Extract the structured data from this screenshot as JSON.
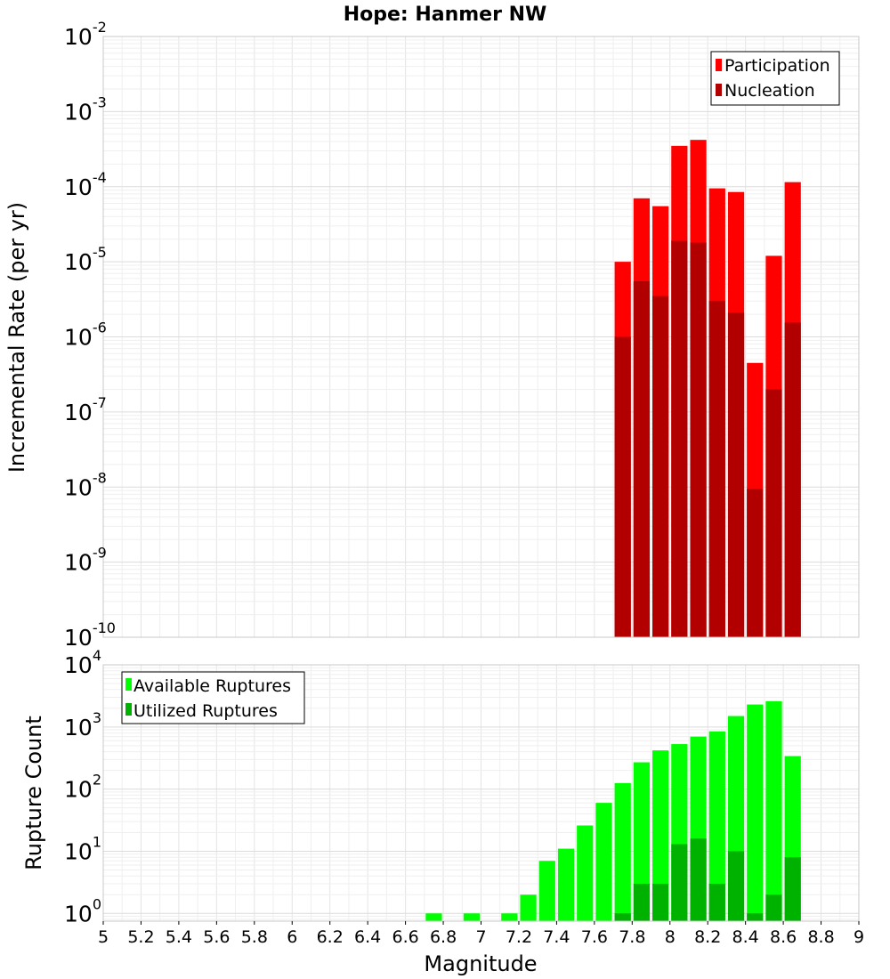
{
  "chart_data": [
    {
      "type": "bar",
      "title": "Hope: Hanmer NW",
      "xlabel": "",
      "ylabel": "Incremental Rate (per yr)",
      "xlim": [
        5,
        9
      ],
      "ylim": [
        1e-10,
        0.01
      ],
      "yscale": "log",
      "bin_width": 0.1,
      "grid": true,
      "legend_position": "top-right",
      "overlay": true,
      "series": [
        {
          "name": "Participation",
          "color": "#ff0000",
          "x": [
            7.75,
            7.85,
            7.95,
            8.05,
            8.15,
            8.25,
            8.35,
            8.45,
            8.55,
            8.65
          ],
          "values": [
            1e-05,
            7e-05,
            5.5e-05,
            0.00035,
            0.00042,
            9.5e-05,
            8.5e-05,
            4.5e-07,
            1.2e-05,
            0.000115
          ]
        },
        {
          "name": "Nucleation",
          "color": "#b20000",
          "x": [
            7.75,
            7.85,
            7.95,
            8.05,
            8.15,
            8.25,
            8.35,
            8.45,
            8.55,
            8.65
          ],
          "values": [
            1e-06,
            5.5e-06,
            3.5e-06,
            1.9e-05,
            1.8e-05,
            3e-06,
            2.1e-06,
            9.5e-09,
            2e-07,
            1.55e-06
          ]
        }
      ]
    },
    {
      "type": "bar",
      "xlabel": "Magnitude",
      "ylabel": "Rupture Count",
      "xlim": [
        5,
        9
      ],
      "ylim": [
        0.75,
        10000
      ],
      "yscale": "log",
      "bin_width": 0.1,
      "grid": true,
      "legend_position": "top-left",
      "overlay": true,
      "x_ticks": [
        5,
        5.2,
        5.4,
        5.6,
        5.8,
        6,
        6.2,
        6.4,
        6.6,
        6.8,
        7,
        7.2,
        7.4,
        7.6,
        7.8,
        8,
        8.2,
        8.4,
        8.6,
        8.8,
        9
      ],
      "series": [
        {
          "name": "Available Ruptures",
          "color": "#00ff00",
          "x": [
            6.75,
            6.95,
            7.15,
            7.25,
            7.35,
            7.45,
            7.55,
            7.65,
            7.75,
            7.85,
            7.95,
            8.05,
            8.15,
            8.25,
            8.35,
            8.45,
            8.55,
            8.65
          ],
          "values": [
            1,
            1,
            1,
            2,
            7,
            11,
            26,
            60,
            125,
            270,
            420,
            530,
            700,
            850,
            1500,
            2300,
            2600,
            340
          ]
        },
        {
          "name": "Utilized Ruptures",
          "color": "#00b200",
          "x": [
            7.75,
            7.85,
            7.95,
            8.05,
            8.15,
            8.25,
            8.35,
            8.45,
            8.55,
            8.65
          ],
          "values": [
            1,
            3,
            3,
            13,
            16,
            3,
            10,
            1,
            2,
            8
          ]
        }
      ]
    }
  ]
}
